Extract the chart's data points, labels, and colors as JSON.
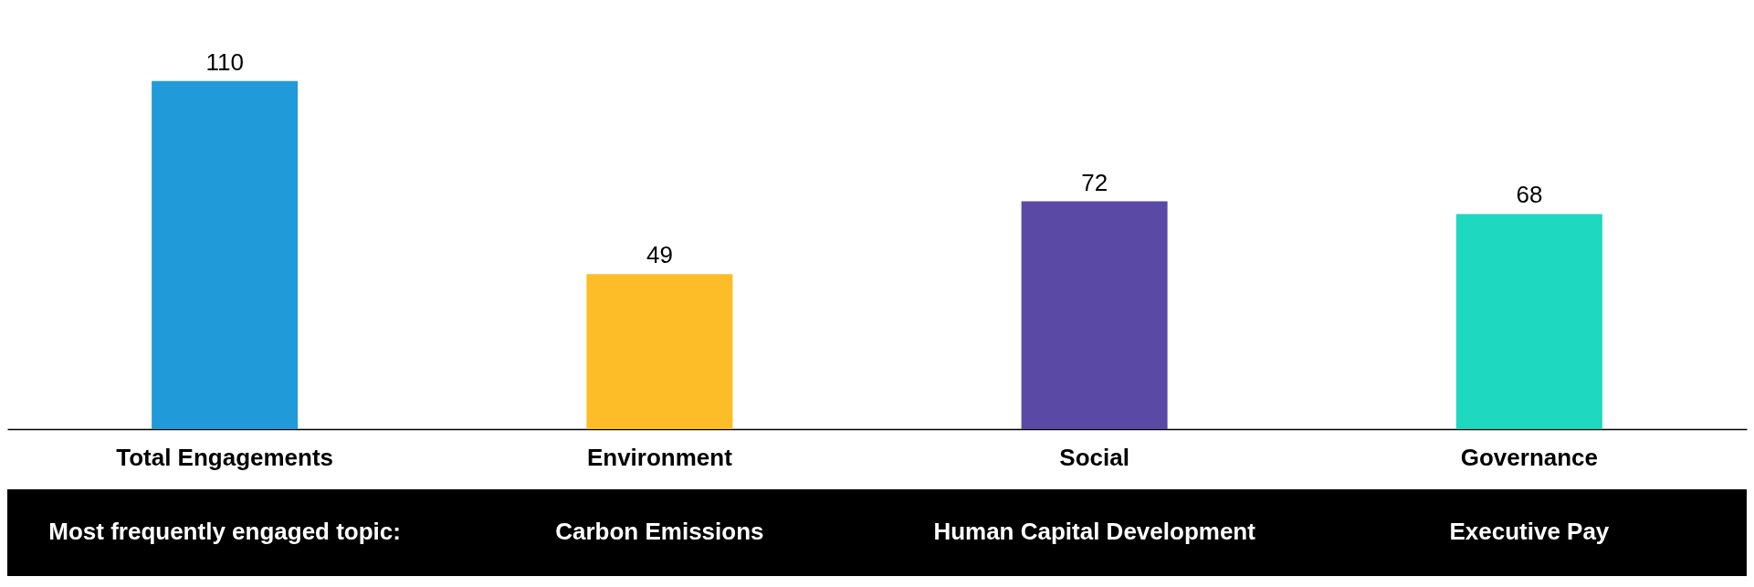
{
  "chart_data": {
    "type": "bar",
    "categories": [
      "Total Engagements",
      "Environment",
      "Social",
      "Governance"
    ],
    "values": [
      110,
      49,
      72,
      68
    ],
    "colors": [
      "#209ad8",
      "#fdbd29",
      "#5a4aa5",
      "#1fd8c0"
    ],
    "data_labels": true,
    "grid": false,
    "annotations": [
      "Most frequently engaged topic:",
      "Carbon Emissions",
      "Human Capital Development",
      "Executive Pay"
    ]
  }
}
